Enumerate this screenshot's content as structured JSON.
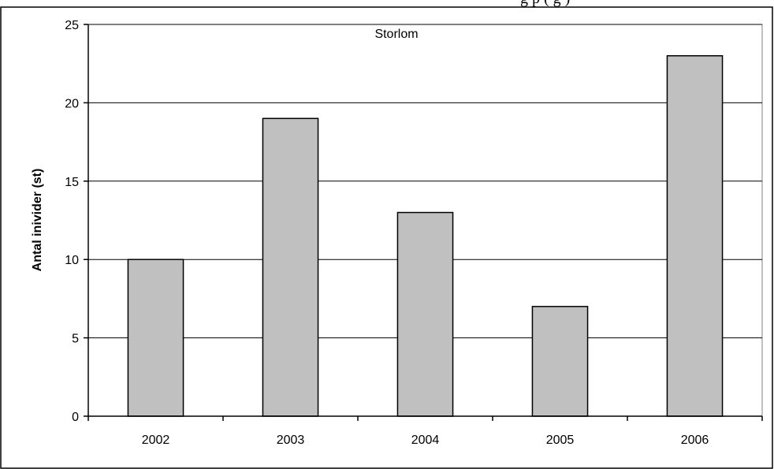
{
  "page": {
    "cropped_top_text": "g       p   (   g   )"
  },
  "chart_data": {
    "type": "bar",
    "title": "Storlom",
    "xlabel": "",
    "ylabel": "Antal inivider (st)",
    "categories": [
      "2002",
      "2003",
      "2004",
      "2005",
      "2006"
    ],
    "values": [
      10,
      19,
      13,
      7,
      23
    ],
    "ylim": [
      0,
      25
    ],
    "yticks": [
      0,
      5,
      10,
      15,
      20,
      25
    ],
    "grid": true,
    "legend": "none",
    "bar_color": "#c0c0c0",
    "bar_edge_color": "#000000",
    "grid_color": "#000000"
  }
}
